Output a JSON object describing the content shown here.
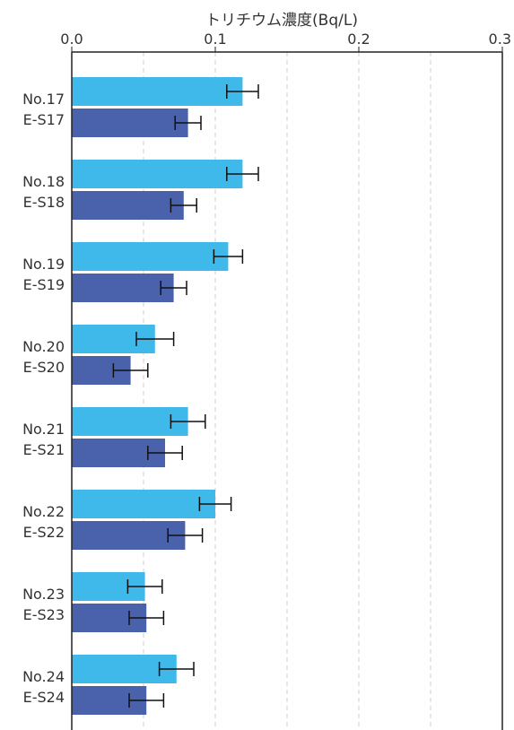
{
  "chart_data": {
    "type": "bar",
    "orientation": "horizontal",
    "title": "トリチウム濃度(Bq/L)",
    "xaxis_position": "top",
    "xlim": [
      0.0,
      0.3
    ],
    "xticks": [
      "0.0",
      "0.1",
      "0.2",
      "0.3"
    ],
    "grid": "vertical dashed",
    "legend": "none",
    "colors": {
      "light": "#3FB8EA",
      "dark": "#4A62AC",
      "error_bar": "#111111",
      "axis": "#222222"
    },
    "groups": [
      {
        "bars": [
          {
            "label": "No.17",
            "value": 0.119,
            "error": 0.011,
            "color": "light"
          },
          {
            "label": "E-S17",
            "value": 0.081,
            "error": 0.009,
            "color": "dark"
          }
        ]
      },
      {
        "bars": [
          {
            "label": "No.18",
            "value": 0.119,
            "error": 0.011,
            "color": "light"
          },
          {
            "label": "E-S18",
            "value": 0.078,
            "error": 0.009,
            "color": "dark"
          }
        ]
      },
      {
        "bars": [
          {
            "label": "No.19",
            "value": 0.109,
            "error": 0.01,
            "color": "light"
          },
          {
            "label": "E-S19",
            "value": 0.071,
            "error": 0.009,
            "color": "dark"
          }
        ]
      },
      {
        "bars": [
          {
            "label": "No.20",
            "value": 0.058,
            "error": 0.013,
            "color": "light"
          },
          {
            "label": "E-S20",
            "value": 0.041,
            "error": 0.012,
            "color": "dark"
          }
        ]
      },
      {
        "bars": [
          {
            "label": "No.21",
            "value": 0.081,
            "error": 0.012,
            "color": "light"
          },
          {
            "label": "E-S21",
            "value": 0.065,
            "error": 0.012,
            "color": "dark"
          }
        ]
      },
      {
        "bars": [
          {
            "label": "No.22",
            "value": 0.1,
            "error": 0.011,
            "color": "light"
          },
          {
            "label": "E-S22",
            "value": 0.079,
            "error": 0.012,
            "color": "dark"
          }
        ]
      },
      {
        "bars": [
          {
            "label": "No.23",
            "value": 0.051,
            "error": 0.012,
            "color": "light"
          },
          {
            "label": "E-S23",
            "value": 0.052,
            "error": 0.012,
            "color": "dark"
          }
        ]
      },
      {
        "bars": [
          {
            "label": "No.24",
            "value": 0.073,
            "error": 0.012,
            "color": "light"
          },
          {
            "label": "E-S24",
            "value": 0.052,
            "error": 0.012,
            "color": "dark"
          }
        ]
      }
    ]
  }
}
